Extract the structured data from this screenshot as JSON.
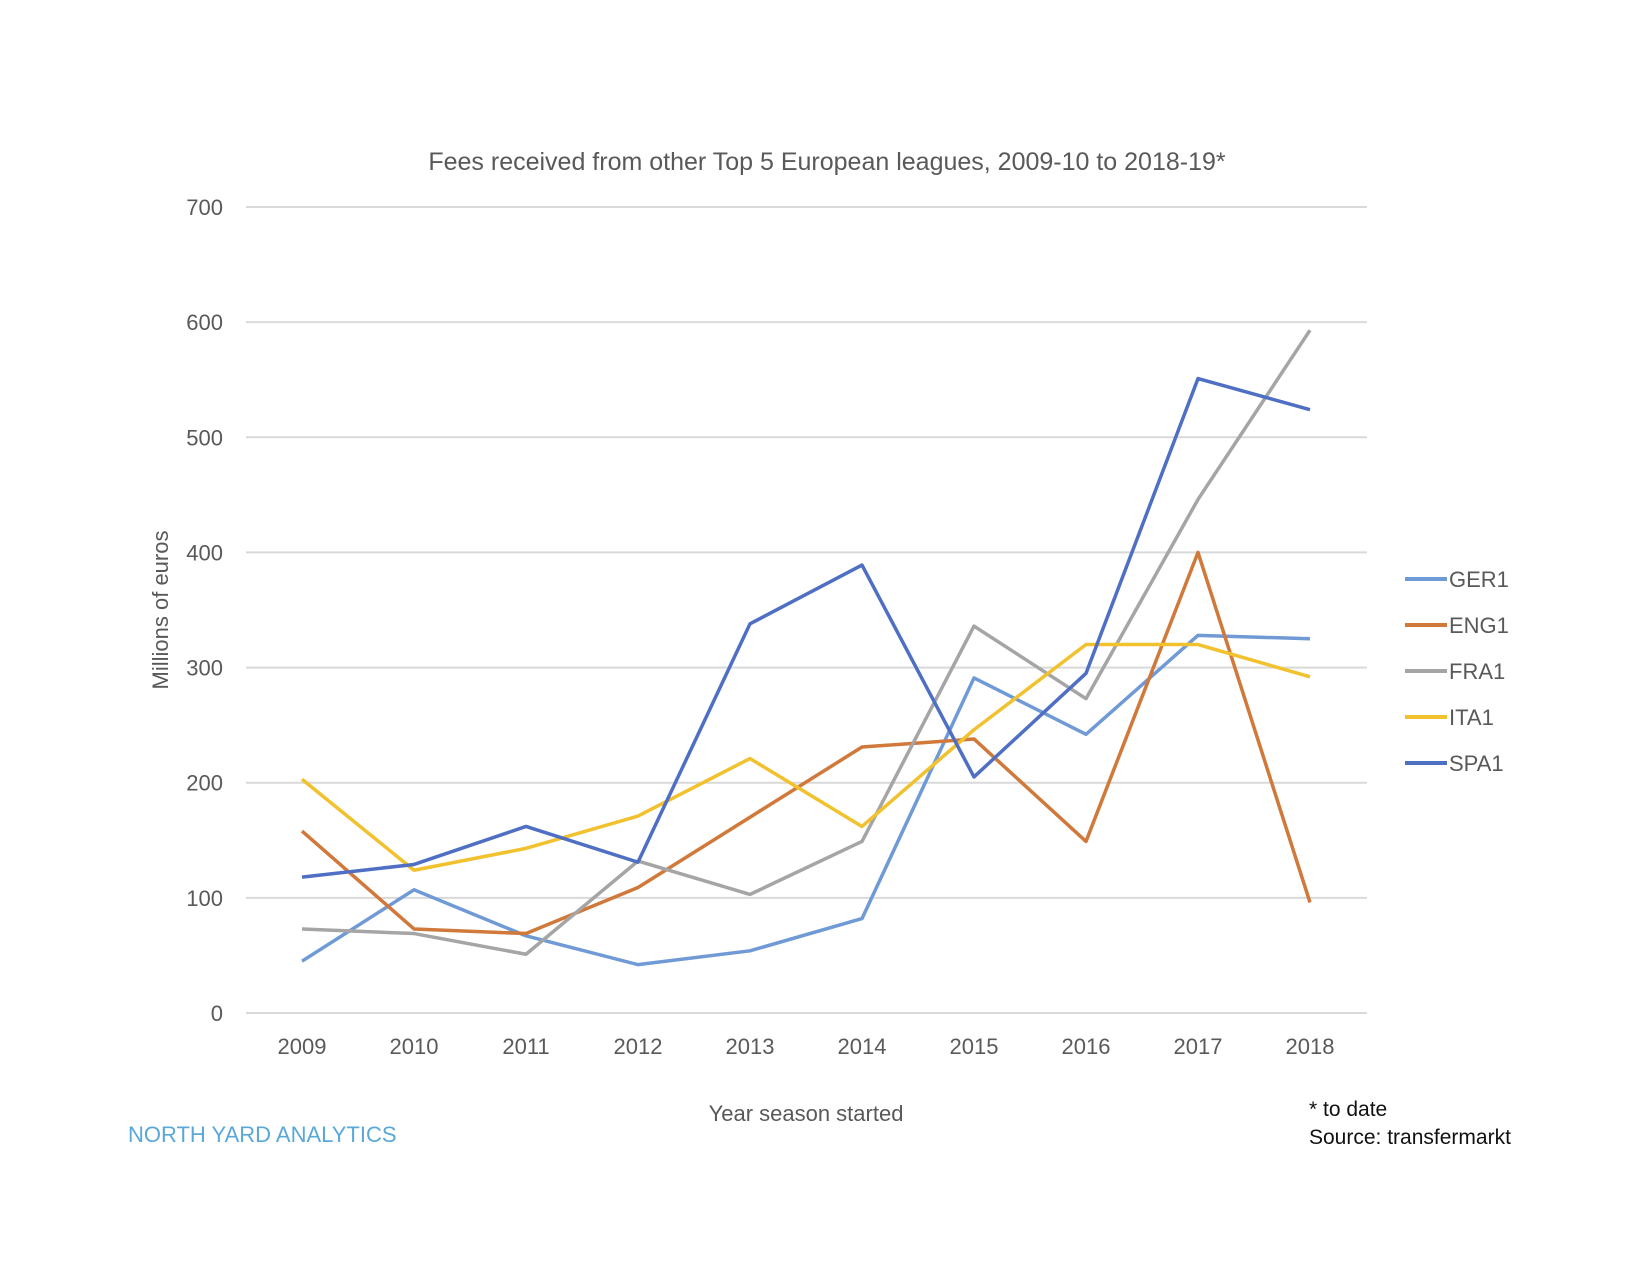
{
  "chart_data": {
    "type": "line",
    "title": "Fees received from other Top 5 European leagues, 2009-10 to 2018-19*",
    "xlabel": "Year season started",
    "ylabel": "Millions of euros",
    "categories": [
      "2009",
      "2010",
      "2011",
      "2012",
      "2013",
      "2014",
      "2015",
      "2016",
      "2017",
      "2018"
    ],
    "ylim": [
      0,
      700
    ],
    "yticks": [
      0,
      100,
      200,
      300,
      400,
      500,
      600,
      700
    ],
    "grid": true,
    "legend_position": "right",
    "series": [
      {
        "name": "GER1",
        "color": "#6f9ad6",
        "values": [
          45,
          107,
          67,
          42,
          54,
          82,
          291,
          242,
          328,
          325
        ]
      },
      {
        "name": "ENG1",
        "color": "#d0793a",
        "values": [
          158,
          73,
          69,
          109,
          170,
          231,
          238,
          149,
          400,
          96
        ]
      },
      {
        "name": "FRA1",
        "color": "#a5a5a5",
        "values": [
          73,
          69,
          51,
          132,
          103,
          149,
          336,
          273,
          446,
          593
        ]
      },
      {
        "name": "ITA1",
        "color": "#f2c12e",
        "values": [
          203,
          124,
          143,
          171,
          221,
          162,
          246,
          320,
          320,
          292
        ]
      },
      {
        "name": "SPA1",
        "color": "#4f6fc4",
        "values": [
          118,
          129,
          162,
          131,
          338,
          389,
          205,
          295,
          551,
          524
        ]
      }
    ]
  },
  "footer": {
    "brand": "NORTH YARD ANALYTICS",
    "note": "* to date",
    "source": "Source: transfermarkt"
  }
}
